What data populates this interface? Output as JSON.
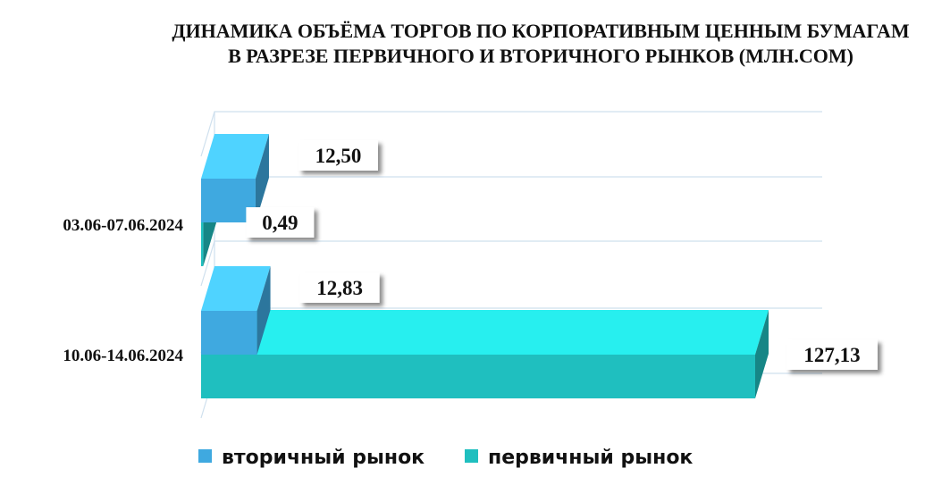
{
  "chart_data": {
    "type": "bar3d-horizontal",
    "title": "ДИНАМИКА ОБЪЁМА ТОРГОВ ПО КОРПОРАТИВНЫМ ЦЕННЫМ БУМАГАМ",
    "subtitle": "В РАЗРЕЗЕ ПЕРВИЧНОГО И ВТОРИЧНОГО РЫНКОВ  (МЛН.СОМ)",
    "categories": [
      "03.06-07.06.2024",
      "10.06-14.06.2024"
    ],
    "series": [
      {
        "name": "вторичный рынок",
        "color": "#3fa9e0",
        "values": [
          12.5,
          12.83
        ],
        "value_labels": [
          "12,50",
          "12,83"
        ]
      },
      {
        "name": "первичный рынок",
        "color": "#1fbfbf",
        "values": [
          0.49,
          127.13
        ],
        "value_labels": [
          "0,49",
          "127,13"
        ]
      }
    ],
    "legend": "bottom"
  }
}
